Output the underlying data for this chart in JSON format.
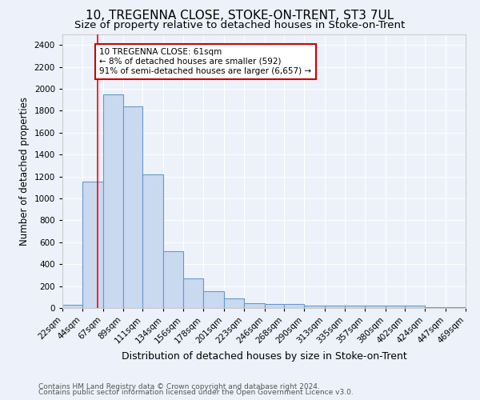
{
  "title": "10, TREGENNA CLOSE, STOKE-ON-TRENT, ST3 7UL",
  "subtitle": "Size of property relative to detached houses in Stoke-on-Trent",
  "xlabel": "Distribution of detached houses by size in Stoke-on-Trent",
  "ylabel": "Number of detached properties",
  "footnote1": "Contains HM Land Registry data © Crown copyright and database right 2024.",
  "footnote2": "Contains public sector information licensed under the Open Government Licence v3.0.",
  "bar_edges": [
    22,
    44,
    67,
    89,
    111,
    134,
    156,
    178,
    201,
    223,
    246,
    268,
    290,
    313,
    335,
    357,
    380,
    402,
    424,
    447,
    469
  ],
  "bar_heights": [
    30,
    1150,
    1950,
    1840,
    1220,
    520,
    270,
    155,
    85,
    45,
    40,
    35,
    20,
    20,
    20,
    20,
    20,
    20,
    5,
    5,
    20
  ],
  "bar_color": "#c9d9f0",
  "bar_edgecolor": "#6699cc",
  "red_line_x": 61,
  "annotation_line1": "10 TREGENNA CLOSE: 61sqm",
  "annotation_line2": "← 8% of detached houses are smaller (592)",
  "annotation_line3": "91% of semi-detached houses are larger (6,657) →",
  "annotation_box_color": "#ffffff",
  "annotation_box_edgecolor": "#cc0000",
  "ylim": [
    0,
    2500
  ],
  "yticks": [
    0,
    200,
    400,
    600,
    800,
    1000,
    1200,
    1400,
    1600,
    1800,
    2000,
    2200,
    2400
  ],
  "bg_color": "#edf2fa",
  "plot_bg_color": "#edf2fa",
  "title_fontsize": 11,
  "subtitle_fontsize": 9.5,
  "tick_label_fontsize": 7.5,
  "ylabel_fontsize": 8.5,
  "xlabel_fontsize": 9,
  "footnote_fontsize": 6.5,
  "annotation_fontsize": 7.5
}
